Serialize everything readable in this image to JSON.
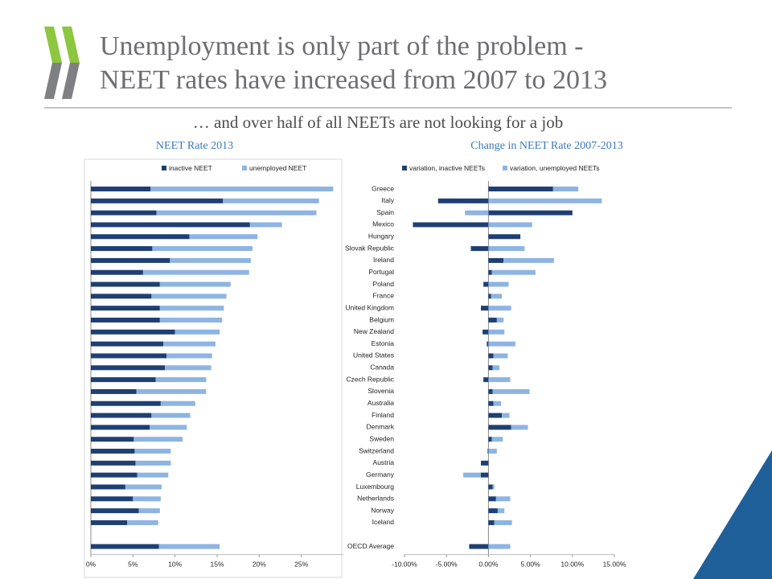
{
  "slide": {
    "title": [
      "Unemployment is only part of the problem -",
      "NEET rates have increased from 2007 to 2013"
    ],
    "subtitle": "… and over half of all NEETs are not looking for a job"
  },
  "chart_data": [
    {
      "type": "hbar_stacked",
      "title": "NEET Rate 2013",
      "xlim": [
        0,
        30
      ],
      "xticks": [
        {
          "value": 0,
          "label": "0%"
        },
        {
          "value": 5,
          "label": "5%"
        },
        {
          "value": 10,
          "label": "10%"
        },
        {
          "value": 15,
          "label": "15%"
        },
        {
          "value": 20,
          "label": "20%"
        },
        {
          "value": 25,
          "label": "25%"
        }
      ],
      "series": [
        {
          "name": "inactive NEET",
          "color": "#1f3f73",
          "values": [
            7.1,
            15.7,
            7.8,
            18.9,
            11.7,
            7.3,
            9.4,
            6.2,
            8.2,
            7.2,
            8.2,
            8.2,
            10.0,
            8.6,
            9.0,
            8.8,
            7.7,
            5.4,
            8.3,
            7.2,
            7.0,
            5.1,
            5.2,
            5.3,
            5.5,
            4.1,
            5.0,
            5.7,
            4.3,
            null,
            8.1
          ]
        },
        {
          "name": "unemployed NEET",
          "color": "#8db4e2",
          "values": [
            21.7,
            11.4,
            19.0,
            3.8,
            8.1,
            11.9,
            9.6,
            12.6,
            8.4,
            8.9,
            7.6,
            7.4,
            5.3,
            6.2,
            5.4,
            5.5,
            6.0,
            8.3,
            4.1,
            4.6,
            4.4,
            5.8,
            4.3,
            4.2,
            3.7,
            4.3,
            3.3,
            2.5,
            3.7,
            null,
            7.2
          ]
        }
      ]
    },
    {
      "type": "hbar_stacked",
      "title": "Change in NEET Rate 2007-2013",
      "categories": [
        "Greece",
        "Italy",
        "Spain",
        "Mexico",
        "Hungary",
        "Slovak Republic",
        "Ireland",
        "Portugal",
        "Poland",
        "France",
        "United Kingdom",
        "Belgium",
        "New Zealand",
        "Estonia",
        "United States",
        "Canada",
        "Czech Republic",
        "Slovenia",
        "Australia",
        "Finland",
        "Denmark",
        "Sweden",
        "Switzerland",
        "Austria",
        "Germany",
        "Luxembourg",
        "Netherlands",
        "Norway",
        "Iceland",
        null,
        "OECD Average"
      ],
      "xlim": [
        -10,
        15
      ],
      "xticks": [
        {
          "value": -10,
          "label": "-10.00%"
        },
        {
          "value": -5,
          "label": "-5.00%"
        },
        {
          "value": 0,
          "label": "0.00%"
        },
        {
          "value": 5,
          "label": "5.00%"
        },
        {
          "value": 10,
          "label": "10.00%"
        },
        {
          "value": 15,
          "label": "15.00%"
        }
      ],
      "series": [
        {
          "name": "variation, inactive NEETs",
          "color": "#1f3f73",
          "values": [
            7.7,
            -6.0,
            10.0,
            -9.0,
            3.8,
            -2.1,
            1.8,
            0.4,
            -0.6,
            0.3,
            -0.9,
            1.0,
            -0.7,
            -0.2,
            0.6,
            0.5,
            -0.6,
            0.5,
            0.6,
            1.6,
            2.7,
            0.4,
            -0.1,
            -0.9,
            -0.9,
            0.5,
            0.9,
            1.1,
            0.7,
            null,
            -2.3
          ]
        },
        {
          "name": "variation, unemployed NEETs",
          "color": "#8db4e2",
          "values": [
            3.0,
            13.5,
            -2.8,
            5.2,
            0,
            4.3,
            6.0,
            5.2,
            2.4,
            1.3,
            2.7,
            0.8,
            1.9,
            3.2,
            1.7,
            0.8,
            2.6,
            4.4,
            0.9,
            0.9,
            2.0,
            1.3,
            1.0,
            0,
            -2.1,
            0.2,
            1.7,
            0.8,
            2.1,
            null,
            2.6
          ]
        }
      ]
    }
  ]
}
